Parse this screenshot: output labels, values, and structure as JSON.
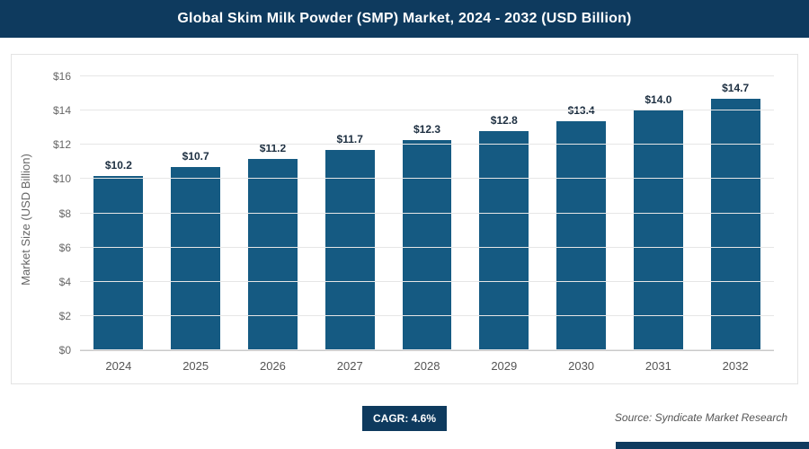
{
  "header": {
    "title": "Global Skim Milk Powder (SMP) Market, 2024 - 2032 (USD Billion)"
  },
  "chart_data": {
    "type": "bar",
    "categories": [
      "2024",
      "2025",
      "2026",
      "2027",
      "2028",
      "2029",
      "2030",
      "2031",
      "2032"
    ],
    "values": [
      10.2,
      10.7,
      11.2,
      11.7,
      12.3,
      12.8,
      13.4,
      14.0,
      14.7
    ],
    "value_labels": [
      "$10.2",
      "$10.7",
      "$11.2",
      "$11.7",
      "$12.3",
      "$12.8",
      "$13.4",
      "$14.0",
      "$14.7"
    ],
    "title": "Global Skim Milk Powder (SMP) Market, 2024 - 2032 (USD Billion)",
    "xlabel": "",
    "ylabel": "Market Size (USD Billion)",
    "ylim": [
      0,
      16
    ],
    "yticks": [
      0,
      2,
      4,
      6,
      8,
      10,
      12,
      14,
      16
    ],
    "ytick_labels": [
      "$0",
      "$2",
      "$4",
      "$6",
      "$8",
      "$10",
      "$12",
      "$14",
      "$16"
    ],
    "grid": true,
    "legend": "none",
    "bar_color": "#155a82"
  },
  "footer": {
    "cagr_label": "CAGR: 4.6%",
    "source": "Source: Syndicate Market Research"
  },
  "colors": {
    "accent_navy": "#0e3a5e",
    "bar_fill": "#155a82",
    "gridline": "#e6e6e6"
  }
}
